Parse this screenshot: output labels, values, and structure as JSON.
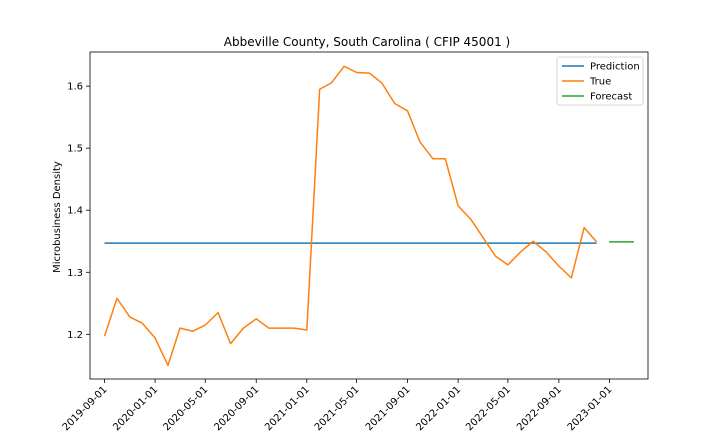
{
  "chart_data": {
    "type": "line",
    "title": "Abbeville County, South Carolina ( CFIP 45001 )",
    "xlabel": "",
    "ylabel": "Microbusiness Density",
    "xlim": [
      "2019-07-28",
      "2023-04-04"
    ],
    "ylim": [
      1.128,
      1.655
    ],
    "y_ticks": [
      1.2,
      1.3,
      1.4,
      1.5,
      1.6
    ],
    "x_ticks": [
      "2019-09-01",
      "2020-01-01",
      "2020-05-01",
      "2020-09-01",
      "2021-01-01",
      "2021-05-01",
      "2021-09-01",
      "2022-01-01",
      "2022-05-01",
      "2022-09-01",
      "2023-01-01"
    ],
    "grid": false,
    "legend_position": "top-right",
    "series": [
      {
        "name": "Prediction",
        "color": "#1f77b4",
        "x": [
          "2019-09-01",
          "2022-12-01"
        ],
        "y": [
          1.347,
          1.347
        ]
      },
      {
        "name": "True",
        "color": "#ff7f0e",
        "x": [
          "2019-09-01",
          "2019-10-01",
          "2019-11-01",
          "2019-12-01",
          "2020-01-01",
          "2020-02-01",
          "2020-03-01",
          "2020-04-01",
          "2020-05-01",
          "2020-06-01",
          "2020-07-01",
          "2020-08-01",
          "2020-09-01",
          "2020-10-01",
          "2020-11-01",
          "2020-12-01",
          "2021-01-01",
          "2021-02-01",
          "2021-03-01",
          "2021-04-01",
          "2021-05-01",
          "2021-06-01",
          "2021-07-01",
          "2021-08-01",
          "2021-09-01",
          "2021-10-01",
          "2021-11-01",
          "2021-12-01",
          "2022-01-01",
          "2022-02-01",
          "2022-03-01",
          "2022-04-01",
          "2022-05-01",
          "2022-06-01",
          "2022-07-01",
          "2022-08-01",
          "2022-09-01",
          "2022-10-01",
          "2022-11-01",
          "2022-12-01"
        ],
        "y": [
          1.197,
          1.258,
          1.228,
          1.218,
          1.194,
          1.15,
          1.21,
          1.205,
          1.215,
          1.235,
          1.185,
          1.21,
          1.225,
          1.21,
          1.21,
          1.21,
          1.207,
          1.595,
          1.605,
          1.632,
          1.622,
          1.621,
          1.605,
          1.572,
          1.56,
          1.51,
          1.483,
          1.483,
          1.407,
          1.385,
          1.357,
          1.326,
          1.312,
          1.333,
          1.35,
          1.333,
          1.31,
          1.291,
          1.372,
          1.349
        ]
      },
      {
        "name": "Forecast",
        "color": "#2ca02c",
        "x": [
          "2022-12-31",
          "2023-03-01"
        ],
        "y": [
          1.349,
          1.349
        ]
      }
    ]
  }
}
